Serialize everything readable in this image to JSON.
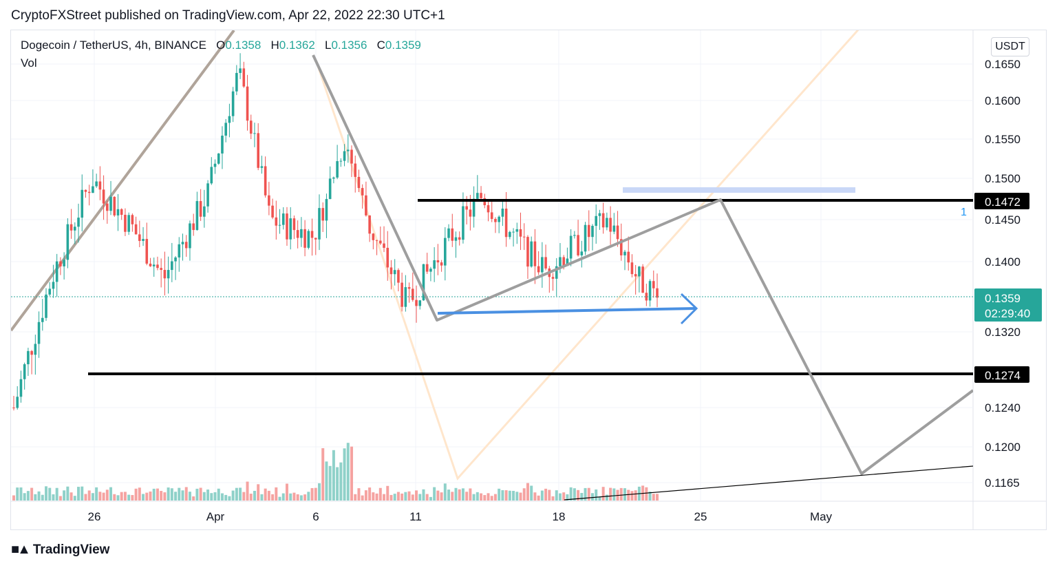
{
  "publisher": "CryptoFXStreet published on TradingView.com, Apr 22, 2022 22:30 UTC+1",
  "legend": {
    "symbol": "Dogecoin / TetherUS, 4h, BINANCE",
    "open_label": "O",
    "open": "0.1358",
    "high_label": "H",
    "high": "0.1362",
    "low_label": "L",
    "low": "0.1356",
    "close_label": "C",
    "close": "0.1359",
    "indicator": "Vol"
  },
  "currency": "USDT",
  "footer": {
    "brand": "TradingView",
    "logo_icon": "tradingview-logo-icon"
  },
  "colors": {
    "up": "#26a69a",
    "down": "#ef5350",
    "badge_black": "#000000",
    "badge_teal": "#26a69a",
    "arrow_blue": "#4a90e2",
    "zone_blue": "#c9d7f7",
    "pattern_grey": "#9e9e9e",
    "wave_brown": "#b0a49a",
    "projection_orange": "#ffe6cc"
  },
  "chart_data": {
    "type": "candlestick",
    "interval": "4h",
    "y_ticks": [
      "0.1650",
      "0.1600",
      "0.1550",
      "0.1500",
      "0.1450",
      "0.1400",
      "0.1320",
      "0.1240",
      "0.1200",
      "0.1165"
    ],
    "x_ticks": [
      "26",
      "Apr",
      "6",
      "11",
      "18",
      "25",
      "May"
    ],
    "price_badges": [
      {
        "label": "0.1472",
        "style": "black"
      },
      {
        "label": "0.1274",
        "style": "black"
      },
      {
        "label": "0.1359",
        "sub": "02:29:40",
        "style": "teal"
      }
    ],
    "annotation_label": "1",
    "horizontal_levels": [
      0.1472,
      0.1274
    ],
    "last_price": 0.1359,
    "range": {
      "from": "Mar 23 2022",
      "to": "Apr 22 2022"
    },
    "trend_start_price": 0.124,
    "trend_end_price": 0.1359
  }
}
